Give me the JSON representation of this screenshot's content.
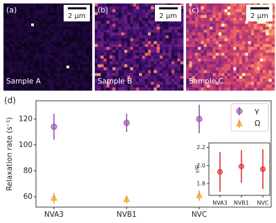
{
  "panels": [
    {
      "label": "(a)",
      "scale_bar": "2 μm",
      "sample": "Sample A"
    },
    {
      "label": "(b)",
      "scale_bar": "2 μm",
      "sample": "Sample B"
    },
    {
      "label": "(c)",
      "scale_bar": "2 μm",
      "sample": "Sample C"
    }
  ],
  "chart_data": [
    {
      "type": "errorbar",
      "label": "(d)",
      "ylabel": "Relaxation rate (s⁻¹)",
      "categories": [
        "NVA3",
        "NVB1",
        "NVC"
      ],
      "series": [
        {
          "name": "γ",
          "color": "#9b4fb0",
          "marker": "circle",
          "values": [
            114,
            117,
            120
          ],
          "errors": [
            10,
            7,
            11
          ]
        },
        {
          "name": "Ω",
          "color": "#f0a030",
          "marker": "triangle",
          "values": [
            59,
            58,
            61
          ],
          "errors": [
            4,
            3,
            4
          ]
        }
      ],
      "ylim": [
        52,
        134
      ],
      "yticks": [
        60,
        80,
        100,
        120
      ],
      "legend": "upper right"
    },
    {
      "type": "errorbar",
      "ylabel": "γ/Ω",
      "categories": [
        "NVA3",
        "NVB1",
        "NVC"
      ],
      "series": [
        {
          "color": "#e03030",
          "marker": "circle",
          "values": [
            1.93,
            1.99,
            1.96
          ],
          "errors": [
            0.22,
            0.18,
            0.22
          ]
        }
      ],
      "ylim": [
        1.67,
        2.25
      ],
      "yticks": [
        1.8,
        {
          "value": 2,
          "label": "2.0"
        },
        2.2
      ]
    }
  ]
}
